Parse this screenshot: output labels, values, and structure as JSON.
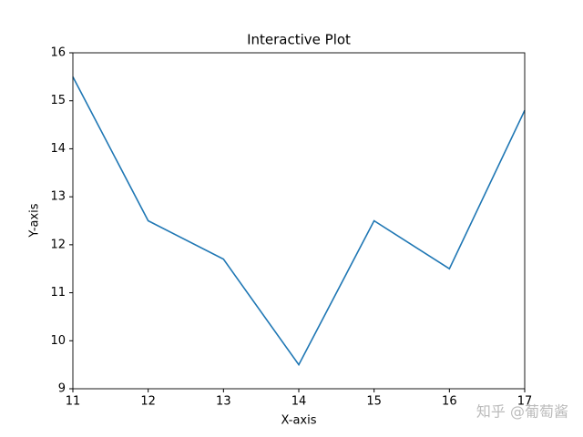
{
  "chart_data": {
    "type": "line",
    "title": "Interactive Plot",
    "x_label": "X-axis",
    "y_label": "Y-axis",
    "x": [
      11,
      12,
      13,
      14,
      15,
      16,
      17
    ],
    "series": [
      {
        "color": "#1f77b4",
        "values": [
          15.5,
          12.5,
          11.7,
          9.5,
          12.5,
          11.5,
          14.8
        ]
      }
    ],
    "xlim": [
      11,
      17
    ],
    "xticks": [
      11,
      12,
      13,
      14,
      15,
      16,
      17
    ],
    "ylim": [
      9,
      16
    ],
    "yticks": [
      9,
      10,
      11,
      12,
      13,
      14,
      15,
      16
    ],
    "grid": false
  },
  "watermark": "知乎 @葡萄酱"
}
